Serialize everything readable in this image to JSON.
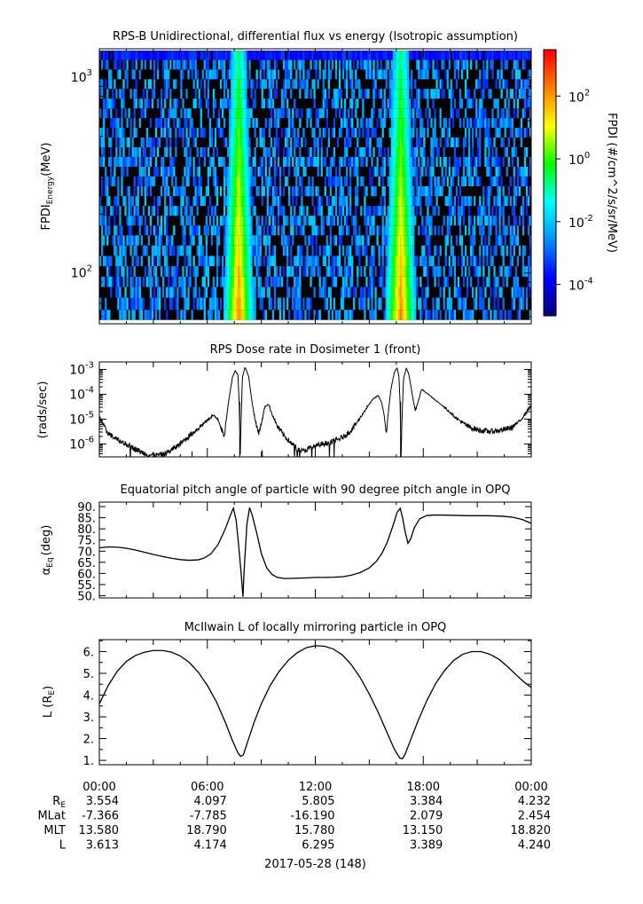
{
  "chart_data": [
    {
      "type": "heatmap",
      "title": "RPS-B  Unidirectional, differential flux vs energy (Isotropic assumption)",
      "ylabel_main": "FPDI",
      "ylabel_sub": "Energy",
      "ylabel_unit": "(MeV)",
      "yscale": "log",
      "ylim": [
        55,
        1400
      ],
      "yticks": [
        {
          "value": 100,
          "base": "10",
          "exp": "2"
        },
        {
          "value": 1000,
          "base": "10",
          "exp": "3"
        }
      ],
      "energy_bins_mev": [
        60,
        70,
        80,
        90,
        102,
        115,
        130,
        147,
        165,
        185,
        208,
        233,
        262,
        294,
        330,
        370,
        415,
        465,
        522,
        585,
        655,
        735,
        825,
        925,
        1035,
        1160,
        1300
      ],
      "xlim_hours": [
        0,
        24
      ],
      "belt_crossings_hours": [
        [
          7.0,
          8.65
        ],
        [
          16.2,
          17.9
        ]
      ],
      "peak_hours": [
        7.75,
        16.75
      ],
      "colorbar": {
        "label": "FPDI (#/cm^2/s/sr/MeV)",
        "scale": "log",
        "range": [
          1e-05,
          3000
        ],
        "ticks": [
          {
            "value": 0.0001,
            "base": "10",
            "exp": "-4"
          },
          {
            "value": 0.01,
            "base": "10",
            "exp": "-2"
          },
          {
            "value": 1,
            "base": "10",
            "exp": "0"
          },
          {
            "value": 100,
            "base": "10",
            "exp": "2"
          }
        ],
        "colors": [
          "#08007a",
          "#0000ff",
          "#0090ff",
          "#00ffff",
          "#00ff00",
          "#ffff00",
          "#ff8000",
          "#ff0000"
        ]
      }
    },
    {
      "type": "line",
      "title": "RPS  Dose rate in Dosimeter 1 (front)",
      "ylabel": "(rads/sec)",
      "yscale": "log",
      "ylim": [
        3e-07,
        0.002
      ],
      "yticks": [
        {
          "value": 1e-06,
          "base": "10",
          "exp": "-6"
        },
        {
          "value": 1e-05,
          "base": "10",
          "exp": "-5"
        },
        {
          "value": 0.0001,
          "base": "10",
          "exp": "-4"
        },
        {
          "value": 0.001,
          "base": "10",
          "exp": "-3"
        }
      ],
      "series_log10": [
        [
          0,
          -4.9
        ],
        [
          0.4,
          -5.5
        ],
        [
          0.8,
          -5.75
        ],
        [
          1.2,
          -5.9
        ],
        [
          1.6,
          -6.05
        ],
        [
          2.0,
          -6.2
        ],
        [
          2.4,
          -6.35
        ],
        [
          2.8,
          -6.45
        ],
        [
          3.2,
          -6.45
        ],
        [
          3.6,
          -6.42
        ],
        [
          4.0,
          -6.25
        ],
        [
          4.4,
          -6.05
        ],
        [
          4.8,
          -5.8
        ],
        [
          5.2,
          -5.55
        ],
        [
          5.6,
          -5.3
        ],
        [
          6.0,
          -5.05
        ],
        [
          6.3,
          -4.85
        ],
        [
          6.6,
          -5.0
        ],
        [
          6.8,
          -5.4
        ],
        [
          6.95,
          -5.8
        ],
        [
          7.0,
          -5.3
        ],
        [
          7.2,
          -4.2
        ],
        [
          7.4,
          -3.3
        ],
        [
          7.55,
          -3.05
        ],
        [
          7.7,
          -3.2
        ],
        [
          7.78,
          -4.5
        ],
        [
          7.82,
          -6.8
        ],
        [
          7.88,
          -5.0
        ],
        [
          7.95,
          -3.3
        ],
        [
          8.1,
          -2.9
        ],
        [
          8.3,
          -3.3
        ],
        [
          8.5,
          -4.4
        ],
        [
          8.7,
          -5.2
        ],
        [
          8.85,
          -5.55
        ],
        [
          9.0,
          -5.2
        ],
        [
          9.2,
          -4.5
        ],
        [
          9.4,
          -4.4
        ],
        [
          9.6,
          -4.8
        ],
        [
          9.9,
          -5.3
        ],
        [
          10.3,
          -5.7
        ],
        [
          10.7,
          -6.0
        ],
        [
          11.0,
          -6.2
        ],
        [
          11.3,
          -6.3
        ],
        [
          11.6,
          -6.2
        ],
        [
          12.0,
          -6.1
        ],
        [
          12.4,
          -6.0
        ],
        [
          12.8,
          -5.95
        ],
        [
          13.2,
          -5.85
        ],
        [
          13.6,
          -5.7
        ],
        [
          14.0,
          -5.45
        ],
        [
          14.4,
          -5.05
        ],
        [
          14.8,
          -4.6
        ],
        [
          15.2,
          -4.2
        ],
        [
          15.5,
          -4.05
        ],
        [
          15.7,
          -4.35
        ],
        [
          15.85,
          -5.0
        ],
        [
          15.95,
          -5.55
        ],
        [
          16.05,
          -4.8
        ],
        [
          16.2,
          -3.8
        ],
        [
          16.4,
          -3.1
        ],
        [
          16.55,
          -2.95
        ],
        [
          16.65,
          -3.3
        ],
        [
          16.72,
          -4.5
        ],
        [
          16.76,
          -6.8
        ],
        [
          16.82,
          -5.0
        ],
        [
          16.9,
          -3.4
        ],
        [
          17.05,
          -2.95
        ],
        [
          17.2,
          -3.2
        ],
        [
          17.4,
          -4.05
        ],
        [
          17.55,
          -4.65
        ],
        [
          17.7,
          -4.35
        ],
        [
          17.9,
          -3.8
        ],
        [
          18.2,
          -3.95
        ],
        [
          18.7,
          -4.25
        ],
        [
          19.3,
          -4.6
        ],
        [
          19.9,
          -5.0
        ],
        [
          20.5,
          -5.3
        ],
        [
          21.1,
          -5.45
        ],
        [
          21.7,
          -5.5
        ],
        [
          22.3,
          -5.45
        ],
        [
          22.9,
          -5.35
        ],
        [
          23.4,
          -5.05
        ],
        [
          24.0,
          -4.45
        ]
      ]
    },
    {
      "type": "line",
      "title": "Equatorial pitch angle of particle with 90 degree pitch angle in OPQ",
      "ylabel_main": "α",
      "ylabel_sub": "Eq",
      "ylabel_unit": "(deg)",
      "ylim": [
        49,
        92
      ],
      "ytick_labels": [
        "50.",
        "55.",
        "60.",
        "65.",
        "70.",
        "75.",
        "80.",
        "85.",
        "90."
      ],
      "series": [
        [
          0,
          71.5
        ],
        [
          0.5,
          71.9
        ],
        [
          1.0,
          71.8
        ],
        [
          1.5,
          71.3
        ],
        [
          2.0,
          70.5
        ],
        [
          2.5,
          69.5
        ],
        [
          3.0,
          68.5
        ],
        [
          3.5,
          67.6
        ],
        [
          4.0,
          66.8
        ],
        [
          4.5,
          66.2
        ],
        [
          5.0,
          65.9
        ],
        [
          5.5,
          66.1
        ],
        [
          5.8,
          66.8
        ],
        [
          6.2,
          68.8
        ],
        [
          6.6,
          73.0
        ],
        [
          7.0,
          80.0
        ],
        [
          7.3,
          86.5
        ],
        [
          7.45,
          89.3
        ],
        [
          7.6,
          84.0
        ],
        [
          7.75,
          72.0
        ],
        [
          7.9,
          58.0
        ],
        [
          7.98,
          49.5
        ],
        [
          8.05,
          62.0
        ],
        [
          8.2,
          82.0
        ],
        [
          8.35,
          89.5
        ],
        [
          8.5,
          86.0
        ],
        [
          8.75,
          78.0
        ],
        [
          9.0,
          69.0
        ],
        [
          9.3,
          62.5
        ],
        [
          9.6,
          59.5
        ],
        [
          9.9,
          58.2
        ],
        [
          10.3,
          57.7
        ],
        [
          10.8,
          57.8
        ],
        [
          11.5,
          58.0
        ],
        [
          12.0,
          58.2
        ],
        [
          12.5,
          58.2
        ],
        [
          13.0,
          58.3
        ],
        [
          13.5,
          58.5
        ],
        [
          14.0,
          59.2
        ],
        [
          14.5,
          60.4
        ],
        [
          15.0,
          62.5
        ],
        [
          15.4,
          65.5
        ],
        [
          15.7,
          69.0
        ],
        [
          16.0,
          74.0
        ],
        [
          16.3,
          81.0
        ],
        [
          16.55,
          87.5
        ],
        [
          16.72,
          89.2
        ],
        [
          16.85,
          85.0
        ],
        [
          17.0,
          78.5
        ],
        [
          17.15,
          73.5
        ],
        [
          17.3,
          75.5
        ],
        [
          17.5,
          80.5
        ],
        [
          17.8,
          84.5
        ],
        [
          18.2,
          86.0
        ],
        [
          18.6,
          86.2
        ],
        [
          19.0,
          86.2
        ],
        [
          19.5,
          86.1
        ],
        [
          20.0,
          86.0
        ],
        [
          20.5,
          85.9
        ],
        [
          21.0,
          85.9
        ],
        [
          21.5,
          85.9
        ],
        [
          22.0,
          85.8
        ],
        [
          22.5,
          85.6
        ],
        [
          23.0,
          85.2
        ],
        [
          23.5,
          84.2
        ],
        [
          24.0,
          82.5
        ]
      ]
    },
    {
      "type": "line",
      "title": "McIlwain L of locally mirroring particle in OPQ",
      "ylabel_main": "L (R",
      "ylabel_sub": "E",
      "ylabel_unit": ")",
      "ylim": [
        0.8,
        6.55
      ],
      "ytick_labels": [
        "1.",
        "2.",
        "3.",
        "4.",
        "5.",
        "6."
      ],
      "series": [
        [
          0,
          3.6
        ],
        [
          0.5,
          4.45
        ],
        [
          1.0,
          5.1
        ],
        [
          1.5,
          5.55
        ],
        [
          2.0,
          5.82
        ],
        [
          2.5,
          5.97
        ],
        [
          3.0,
          6.05
        ],
        [
          3.5,
          6.05
        ],
        [
          4.0,
          5.98
        ],
        [
          4.5,
          5.8
        ],
        [
          5.0,
          5.5
        ],
        [
          5.5,
          5.05
        ],
        [
          6.0,
          4.45
        ],
        [
          6.5,
          3.7
        ],
        [
          7.0,
          2.75
        ],
        [
          7.4,
          1.9
        ],
        [
          7.7,
          1.35
        ],
        [
          7.85,
          1.18
        ],
        [
          8.0,
          1.25
        ],
        [
          8.2,
          1.75
        ],
        [
          8.6,
          2.75
        ],
        [
          9.0,
          3.6
        ],
        [
          9.5,
          4.45
        ],
        [
          10.0,
          5.1
        ],
        [
          10.5,
          5.6
        ],
        [
          11.0,
          5.95
        ],
        [
          11.5,
          6.18
        ],
        [
          12.0,
          6.27
        ],
        [
          12.5,
          6.25
        ],
        [
          13.0,
          6.12
        ],
        [
          13.5,
          5.85
        ],
        [
          14.0,
          5.4
        ],
        [
          14.5,
          4.8
        ],
        [
          15.0,
          4.05
        ],
        [
          15.5,
          3.2
        ],
        [
          16.0,
          2.25
        ],
        [
          16.4,
          1.5
        ],
        [
          16.7,
          1.1
        ],
        [
          16.85,
          1.08
        ],
        [
          17.0,
          1.3
        ],
        [
          17.3,
          1.95
        ],
        [
          17.7,
          2.8
        ],
        [
          18.2,
          3.75
        ],
        [
          18.7,
          4.55
        ],
        [
          19.2,
          5.15
        ],
        [
          19.7,
          5.6
        ],
        [
          20.2,
          5.88
        ],
        [
          20.7,
          6.0
        ],
        [
          21.2,
          6.0
        ],
        [
          21.7,
          5.88
        ],
        [
          22.2,
          5.65
        ],
        [
          22.7,
          5.3
        ],
        [
          23.2,
          4.9
        ],
        [
          23.6,
          4.6
        ],
        [
          24.0,
          4.35
        ]
      ]
    }
  ],
  "time_axis": {
    "ticks": [
      "00:00",
      "06:00",
      "12:00",
      "18:00",
      "00:00"
    ],
    "date_label": "2017-05-28 (148)",
    "ephemeris": [
      {
        "label": "R",
        "sub": "E",
        "values": [
          "3.554",
          "4.097",
          "5.805",
          "3.384",
          "4.232"
        ]
      },
      {
        "label": "MLat",
        "sub": "",
        "values": [
          "-7.366",
          "-7.785",
          "-16.190",
          "2.079",
          "2.454"
        ]
      },
      {
        "label": "MLT",
        "sub": "",
        "values": [
          "13.580",
          "18.790",
          "15.780",
          "13.150",
          "18.820"
        ]
      },
      {
        "label": "L",
        "sub": "",
        "values": [
          "3.613",
          "4.174",
          "6.295",
          "3.389",
          "4.240"
        ]
      }
    ]
  }
}
